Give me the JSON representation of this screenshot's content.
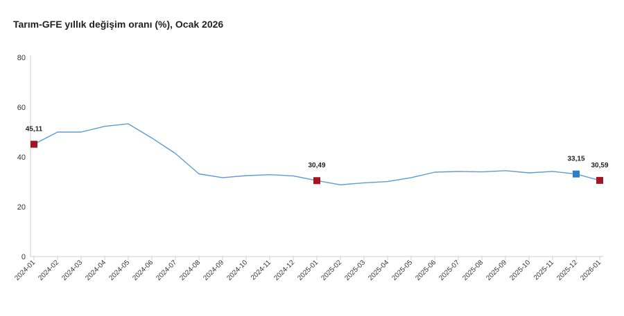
{
  "title": "Tarım-GFE yıllık değişim oranı (%), Ocak 2026",
  "chart_data": {
    "type": "line",
    "title": "Tarım-GFE yıllık değişim oranı (%), Ocak 2026",
    "xlabel": "",
    "ylabel": "",
    "ylim": [
      0,
      80
    ],
    "yticks": [
      0,
      20,
      40,
      60,
      80
    ],
    "grid": false,
    "categories": [
      "2024-01",
      "2024-02",
      "2024-03",
      "2024-04",
      "2024-05",
      "2024-06",
      "2024-07",
      "2024-08",
      "2024-09",
      "2024-10",
      "2024-11",
      "2024-12",
      "2025-01",
      "2025-02",
      "2025-03",
      "2025-04",
      "2025-05",
      "2025-06",
      "2025-07",
      "2025-08",
      "2025-09",
      "2025-10",
      "2025-11",
      "2025-12",
      "2026-01"
    ],
    "series": [
      {
        "color": "#5b9bd5",
        "values": [
          45.11,
          50.0,
          50.0,
          52.3,
          53.3,
          47.6,
          41.4,
          33.2,
          31.7,
          32.5,
          32.9,
          32.4,
          30.49,
          28.8,
          29.6,
          30.1,
          31.7,
          33.9,
          34.2,
          34.0,
          34.5,
          33.6,
          34.2,
          33.15,
          30.59
        ]
      }
    ],
    "highlighted_points": [
      {
        "index": 0,
        "label": "45,11",
        "color": "#a31621"
      },
      {
        "index": 12,
        "label": "30,49",
        "color": "#a31621"
      },
      {
        "index": 23,
        "label": "33,15",
        "color": "#2e7fc2"
      },
      {
        "index": 24,
        "label": "30,59",
        "color": "#a31621"
      }
    ]
  }
}
